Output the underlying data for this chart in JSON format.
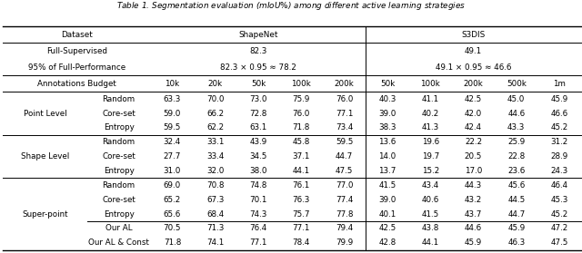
{
  "title": "Table 1. Segmentation evaluation ($mIoU\\%$) among different active learning strategies",
  "shapenet_cols": [
    "10k",
    "20k",
    "50k",
    "100k",
    "200k"
  ],
  "s3dis_cols": [
    "50k",
    "100k",
    "200k",
    "500k",
    "1m"
  ],
  "full_supervised_sn": "82.3",
  "full_supervised_s3": "49.1",
  "perf95_sn": "82.3 × 0.95 ≈ 78.2",
  "perf95_s3": "49.1 × 0.95 ≈ 46.6",
  "groups": [
    {
      "group_label": "Point Level",
      "rows": [
        {
          "method": "Random",
          "shapenet": [
            "63.3",
            "70.0",
            "73.0",
            "75.9",
            "76.0"
          ],
          "s3dis": [
            "40.3",
            "41.1",
            "42.5",
            "45.0",
            "45.9"
          ]
        },
        {
          "method": "Core-set",
          "shapenet": [
            "59.0",
            "66.2",
            "72.8",
            "76.0",
            "77.1"
          ],
          "s3dis": [
            "39.0",
            "40.2",
            "42.0",
            "44.6",
            "46.6"
          ]
        },
        {
          "method": "Entropy",
          "shapenet": [
            "59.5",
            "62.2",
            "63.1",
            "71.8",
            "73.4"
          ],
          "s3dis": [
            "38.3",
            "41.3",
            "42.4",
            "43.3",
            "45.2"
          ]
        }
      ],
      "has_sub_separator": false,
      "bottom_border": true
    },
    {
      "group_label": "Shape Level",
      "rows": [
        {
          "method": "Random",
          "shapenet": [
            "32.4",
            "33.1",
            "43.9",
            "45.8",
            "59.5"
          ],
          "s3dis": [
            "13.6",
            "19.6",
            "22.2",
            "25.9",
            "31.2"
          ]
        },
        {
          "method": "Core-set",
          "shapenet": [
            "27.7",
            "33.4",
            "34.5",
            "37.1",
            "44.7"
          ],
          "s3dis": [
            "14.0",
            "19.7",
            "20.5",
            "22.8",
            "28.9"
          ]
        },
        {
          "method": "Entropy",
          "shapenet": [
            "31.0",
            "32.0",
            "38.0",
            "44.1",
            "47.5"
          ],
          "s3dis": [
            "13.7",
            "15.2",
            "17.0",
            "23.6",
            "24.3"
          ]
        }
      ],
      "has_sub_separator": false,
      "bottom_border": true
    },
    {
      "group_label": "Super-point",
      "rows": [
        {
          "method": "Random",
          "shapenet": [
            "69.0",
            "70.8",
            "74.8",
            "76.1",
            "77.0"
          ],
          "s3dis": [
            "41.5",
            "43.4",
            "44.3",
            "45.6",
            "46.4"
          ]
        },
        {
          "method": "Core-set",
          "shapenet": [
            "65.2",
            "67.3",
            "70.1",
            "76.3",
            "77.4"
          ],
          "s3dis": [
            "39.0",
            "40.6",
            "43.2",
            "44.5",
            "45.3"
          ]
        },
        {
          "method": "Entropy",
          "shapenet": [
            "65.6",
            "68.4",
            "74.3",
            "75.7",
            "77.8"
          ],
          "s3dis": [
            "40.1",
            "41.5",
            "43.7",
            "44.7",
            "45.2"
          ]
        },
        {
          "method": "Our AL",
          "shapenet": [
            "70.5",
            "71.3",
            "76.4",
            "77.1",
            "79.4"
          ],
          "s3dis": [
            "42.5",
            "43.8",
            "44.6",
            "45.9",
            "47.2"
          ]
        },
        {
          "method": "Our AL & Const",
          "shapenet": [
            "71.8",
            "74.1",
            "77.1",
            "78.4",
            "79.9"
          ],
          "s3dis": [
            "42.8",
            "44.1",
            "45.9",
            "46.3",
            "47.5"
          ]
        }
      ],
      "has_sub_separator": true,
      "sub_separator_after": 3,
      "bottom_border": false
    }
  ],
  "bg_color": "#ffffff",
  "text_color": "#000000"
}
